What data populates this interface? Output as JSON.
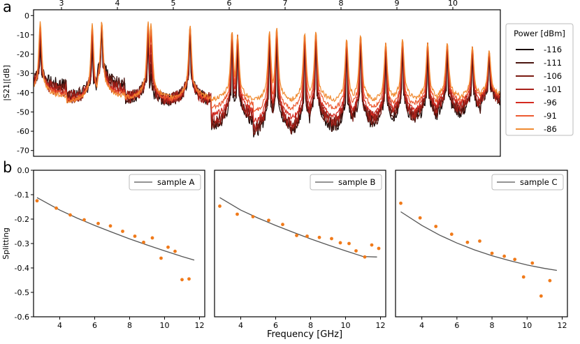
{
  "panel_labels": [
    "a",
    "b"
  ],
  "xlabel": "Frequency [GHz]",
  "chart_data": [
    {
      "type": "line",
      "panel": "a",
      "ylabel": "|S21|[dB]",
      "xlim": [
        2.5,
        10.85
      ],
      "ylim": [
        -73,
        3
      ],
      "x_ticks": [
        3,
        4,
        5,
        6,
        7,
        8,
        9,
        10
      ],
      "y_ticks": [
        0,
        -10,
        -20,
        -30,
        -40,
        -50,
        -60,
        -70
      ],
      "x_axis_position": "top",
      "legend_title": "Power [dBm]",
      "legend_position": "outside-right",
      "resonances": [
        2.62,
        3.55,
        3.72,
        4.55,
        4.6,
        5.3,
        5.3,
        6.05,
        6.15,
        6.72,
        6.85,
        7.35,
        7.55,
        8.1,
        8.35,
        8.8,
        9.1,
        9.55,
        9.9,
        10.35,
        10.65
      ],
      "series": [
        {
          "name": "-116",
          "color": "#1a0a08",
          "peak_db": [
            -15,
            -14,
            -3,
            -10,
            -30,
            -5,
            -5,
            -8,
            -10,
            -8,
            -6,
            -9,
            -8,
            -12,
            -10,
            -14,
            -12,
            -14,
            -14,
            -16,
            -18
          ],
          "baseline_db": [
            -36,
            -42,
            -35,
            -43,
            -44,
            -44,
            -47,
            -58,
            -55,
            -62,
            -60,
            -62,
            -58,
            -60,
            -58,
            -58,
            -56,
            -55,
            -52,
            -52,
            -46
          ]
        },
        {
          "name": "-111",
          "color": "#4a1510",
          "peak_db": [
            -12,
            -12,
            -3,
            -9,
            -25,
            -5,
            -5,
            -8,
            -10,
            -8,
            -6,
            -9,
            -8,
            -12,
            -10,
            -14,
            -12,
            -14,
            -14,
            -16,
            -18
          ],
          "baseline_db": [
            -37,
            -42,
            -36,
            -43,
            -44,
            -44,
            -47,
            -57,
            -54,
            -61,
            -59,
            -61,
            -57,
            -59,
            -57,
            -57,
            -55,
            -54,
            -51,
            -51,
            -46
          ]
        },
        {
          "name": "-106",
          "color": "#7a1a12",
          "peak_db": [
            -10,
            -10,
            -3,
            -8,
            -20,
            -5,
            -5,
            -8,
            -10,
            -8,
            -6,
            -9,
            -8,
            -12,
            -10,
            -14,
            -12,
            -14,
            -14,
            -16,
            -18
          ],
          "baseline_db": [
            -38,
            -43,
            -38,
            -43,
            -44,
            -44,
            -47,
            -56,
            -53,
            -60,
            -58,
            -60,
            -56,
            -58,
            -56,
            -56,
            -54,
            -53,
            -50,
            -50,
            -45
          ]
        },
        {
          "name": "-101",
          "color": "#a8201a",
          "peak_db": [
            -8,
            -8,
            -3,
            -6,
            -15,
            -5,
            -5,
            -8,
            -10,
            -8,
            -6,
            -9,
            -8,
            -12,
            -10,
            -14,
            -12,
            -14,
            -14,
            -16,
            -18
          ],
          "baseline_db": [
            -39,
            -43,
            -39,
            -43,
            -44,
            -44,
            -46,
            -55,
            -52,
            -59,
            -57,
            -58,
            -55,
            -57,
            -55,
            -55,
            -53,
            -52,
            -49,
            -49,
            -45
          ]
        },
        {
          "name": "-96",
          "color": "#d42a20",
          "peak_db": [
            -6,
            -6,
            -3,
            -5,
            -10,
            -5,
            -5,
            -8,
            -10,
            -8,
            -6,
            -9,
            -8,
            -12,
            -10,
            -14,
            -12,
            -14,
            -14,
            -16,
            -18
          ],
          "baseline_db": [
            -40,
            -44,
            -40,
            -43,
            -44,
            -44,
            -46,
            -52,
            -50,
            -56,
            -54,
            -55,
            -52,
            -54,
            -53,
            -53,
            -51,
            -50,
            -47,
            -47,
            -44
          ]
        },
        {
          "name": "-91",
          "color": "#ec5a30",
          "peak_db": [
            -5,
            -5,
            -3,
            -4,
            -7,
            -5,
            -5,
            -8,
            -10,
            -8,
            -6,
            -9,
            -8,
            -12,
            -10,
            -14,
            -12,
            -14,
            -14,
            -16,
            -18
          ],
          "baseline_db": [
            -41,
            -44,
            -41,
            -43,
            -44,
            -44,
            -45,
            -48,
            -47,
            -51,
            -50,
            -50,
            -48,
            -50,
            -49,
            -49,
            -48,
            -47,
            -45,
            -45,
            -43
          ]
        },
        {
          "name": "-86",
          "color": "#f08a30",
          "peak_db": [
            -3,
            -4,
            -3,
            -3,
            -4,
            -5,
            -5,
            -8,
            -10,
            -8,
            -6,
            -9,
            -8,
            -12,
            -10,
            -14,
            -12,
            -14,
            -14,
            -16,
            -18
          ],
          "baseline_db": [
            -42,
            -45,
            -42,
            -43,
            -43,
            -43,
            -43,
            -44,
            -44,
            -45,
            -45,
            -45,
            -44,
            -45,
            -45,
            -45,
            -44,
            -44,
            -43,
            -43,
            -42
          ]
        }
      ]
    },
    {
      "type": "scatter",
      "panel": "b-left",
      "ylabel": "Splitting",
      "xlim": [
        2.5,
        12.3
      ],
      "ylim": [
        -0.6,
        0.0
      ],
      "x_ticks": [
        4,
        6,
        8,
        10,
        12
      ],
      "y_ticks": [
        0.0,
        -0.1,
        -0.2,
        -0.3,
        -0.4,
        -0.5,
        -0.6
      ],
      "legend": "sample A",
      "legend_position": "top-right",
      "points": {
        "x": [
          2.7,
          3.8,
          4.6,
          5.4,
          6.2,
          6.9,
          7.6,
          8.3,
          8.8,
          9.3,
          9.8,
          10.2,
          10.6,
          11.0,
          11.4
        ],
        "y": [
          -0.125,
          -0.155,
          -0.183,
          -0.203,
          -0.218,
          -0.228,
          -0.25,
          -0.27,
          -0.295,
          -0.277,
          -0.36,
          -0.315,
          -0.332,
          -0.448,
          -0.445
        ]
      },
      "fit": {
        "x": [
          2.7,
          4.0,
          5.0,
          6.0,
          7.0,
          8.0,
          9.0,
          10.0,
          11.0,
          11.7
        ],
        "y": [
          -0.112,
          -0.163,
          -0.196,
          -0.226,
          -0.254,
          -0.281,
          -0.306,
          -0.33,
          -0.353,
          -0.368
        ]
      }
    },
    {
      "type": "scatter",
      "panel": "b-middle",
      "ylabel": "",
      "xlim": [
        2.5,
        12.3
      ],
      "ylim": [
        -0.6,
        0.0
      ],
      "x_ticks": [
        4,
        6,
        8,
        10,
        12
      ],
      "y_ticks": [],
      "legend": "sample B",
      "legend_position": "top-right",
      "points": {
        "x": [
          2.8,
          3.8,
          4.7,
          5.6,
          6.4,
          7.2,
          7.8,
          8.5,
          9.2,
          9.7,
          10.2,
          10.6,
          11.1,
          11.5,
          11.9
        ],
        "y": [
          -0.147,
          -0.18,
          -0.19,
          -0.205,
          -0.222,
          -0.267,
          -0.27,
          -0.275,
          -0.28,
          -0.297,
          -0.3,
          -0.33,
          -0.355,
          -0.306,
          -0.32
        ]
      },
      "fit": {
        "x": [
          2.8,
          4.0,
          5.0,
          6.0,
          7.0,
          8.0,
          9.0,
          10.0,
          11.0,
          11.8
        ],
        "y": [
          -0.112,
          -0.163,
          -0.196,
          -0.226,
          -0.254,
          -0.281,
          -0.306,
          -0.33,
          -0.353,
          -0.355
        ]
      }
    },
    {
      "type": "scatter",
      "panel": "b-right",
      "ylabel": "",
      "xlim": [
        2.5,
        12.3
      ],
      "ylim": [
        -0.6,
        0.0
      ],
      "x_ticks": [
        4,
        6,
        8,
        10,
        12
      ],
      "y_ticks": [],
      "legend": "sample C",
      "legend_position": "top-right",
      "points": {
        "x": [
          2.8,
          3.9,
          4.8,
          5.7,
          6.6,
          7.3,
          8.0,
          8.7,
          9.3,
          9.8,
          10.3,
          10.8,
          11.3
        ],
        "y": [
          -0.135,
          -0.195,
          -0.23,
          -0.262,
          -0.295,
          -0.29,
          -0.34,
          -0.352,
          -0.365,
          -0.437,
          -0.38,
          -0.515,
          -0.452
        ]
      },
      "fit": {
        "x": [
          2.8,
          4.0,
          5.0,
          6.0,
          7.0,
          8.0,
          9.0,
          10.0,
          11.0,
          11.7
        ],
        "y": [
          -0.17,
          -0.226,
          -0.265,
          -0.298,
          -0.326,
          -0.35,
          -0.37,
          -0.388,
          -0.402,
          -0.41
        ]
      }
    }
  ]
}
